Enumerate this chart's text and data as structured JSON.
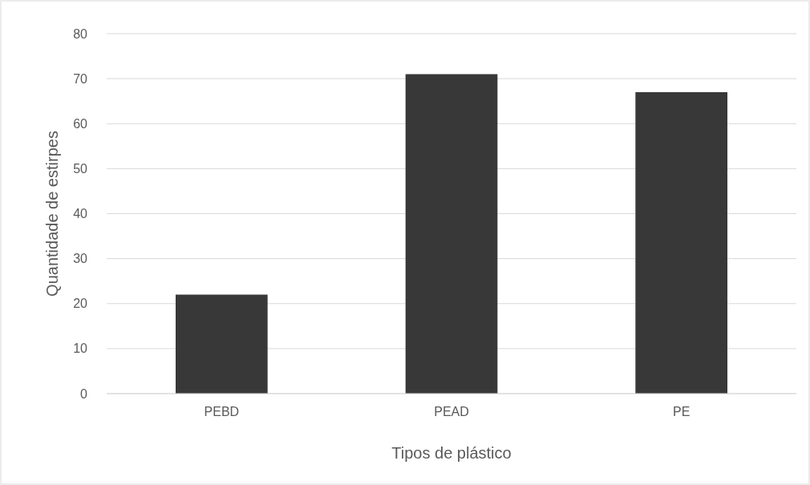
{
  "chart_data": {
    "type": "bar",
    "xlabel": "Tipos de plástico",
    "ylabel": "Quantidade de estirpes",
    "categories": [
      "PEBD",
      "PEAD",
      "PE"
    ],
    "values": [
      22,
      71,
      67
    ],
    "color": "#383838",
    "ylim": [
      0,
      80
    ],
    "yticks": [
      0,
      10,
      20,
      30,
      40,
      50,
      60,
      70,
      80
    ],
    "grid": "y"
  }
}
